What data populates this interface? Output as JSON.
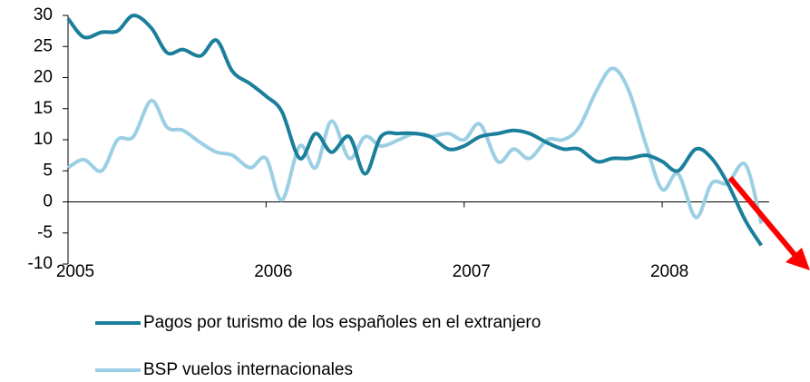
{
  "chart_data": {
    "type": "line",
    "x": [
      2005,
      2005.08,
      2005.17,
      2005.25,
      2005.33,
      2005.42,
      2005.5,
      2005.58,
      2005.67,
      2005.75,
      2005.83,
      2005.92,
      2006,
      2006.08,
      2006.17,
      2006.25,
      2006.33,
      2006.42,
      2006.5,
      2006.58,
      2006.67,
      2006.75,
      2006.83,
      2006.92,
      2007,
      2007.08,
      2007.17,
      2007.25,
      2007.33,
      2007.42,
      2007.5,
      2007.58,
      2007.67,
      2007.75,
      2007.83,
      2007.92,
      2008,
      2008.08,
      2008.17,
      2008.25,
      2008.33,
      2008.42,
      2008.5
    ],
    "series": [
      {
        "name": "Pagos por turismo de los españoles en el extranjero",
        "color": "#1b7f9b",
        "values": [
          29.5,
          26.5,
          27.3,
          27.5,
          30,
          28,
          24,
          24.5,
          23.5,
          26,
          21,
          19,
          17,
          14.5,
          7,
          11,
          8,
          10.5,
          4.5,
          10.5,
          11,
          11,
          10.5,
          8.5,
          9,
          10.5,
          11,
          11.5,
          11,
          9.5,
          8.5,
          8.5,
          6.5,
          7,
          7,
          7.5,
          6.5,
          5,
          8.5,
          7,
          3,
          -3,
          -7
        ]
      },
      {
        "name": "BSP vuelos internacionales",
        "color": "#9ccfe4",
        "values": [
          5.5,
          6.8,
          5,
          10,
          10.5,
          16.3,
          12,
          11.5,
          9.5,
          8,
          7.5,
          5.5,
          7,
          0.3,
          9,
          5.5,
          13,
          7,
          10.5,
          9,
          10,
          11,
          10.5,
          11,
          10,
          12.5,
          6.5,
          8.5,
          7,
          10,
          10,
          12,
          18,
          21.5,
          18,
          9,
          2,
          4.5,
          -2.5,
          3,
          3,
          6,
          -3.5
        ]
      }
    ],
    "xlim": [
      2005,
      2008.54
    ],
    "xticks": [
      2005,
      2006,
      2007,
      2008
    ],
    "ylim": [
      -10,
      30
    ],
    "yticks": [
      -10,
      -5,
      0,
      5,
      10,
      15,
      20,
      25,
      30
    ]
  }
}
